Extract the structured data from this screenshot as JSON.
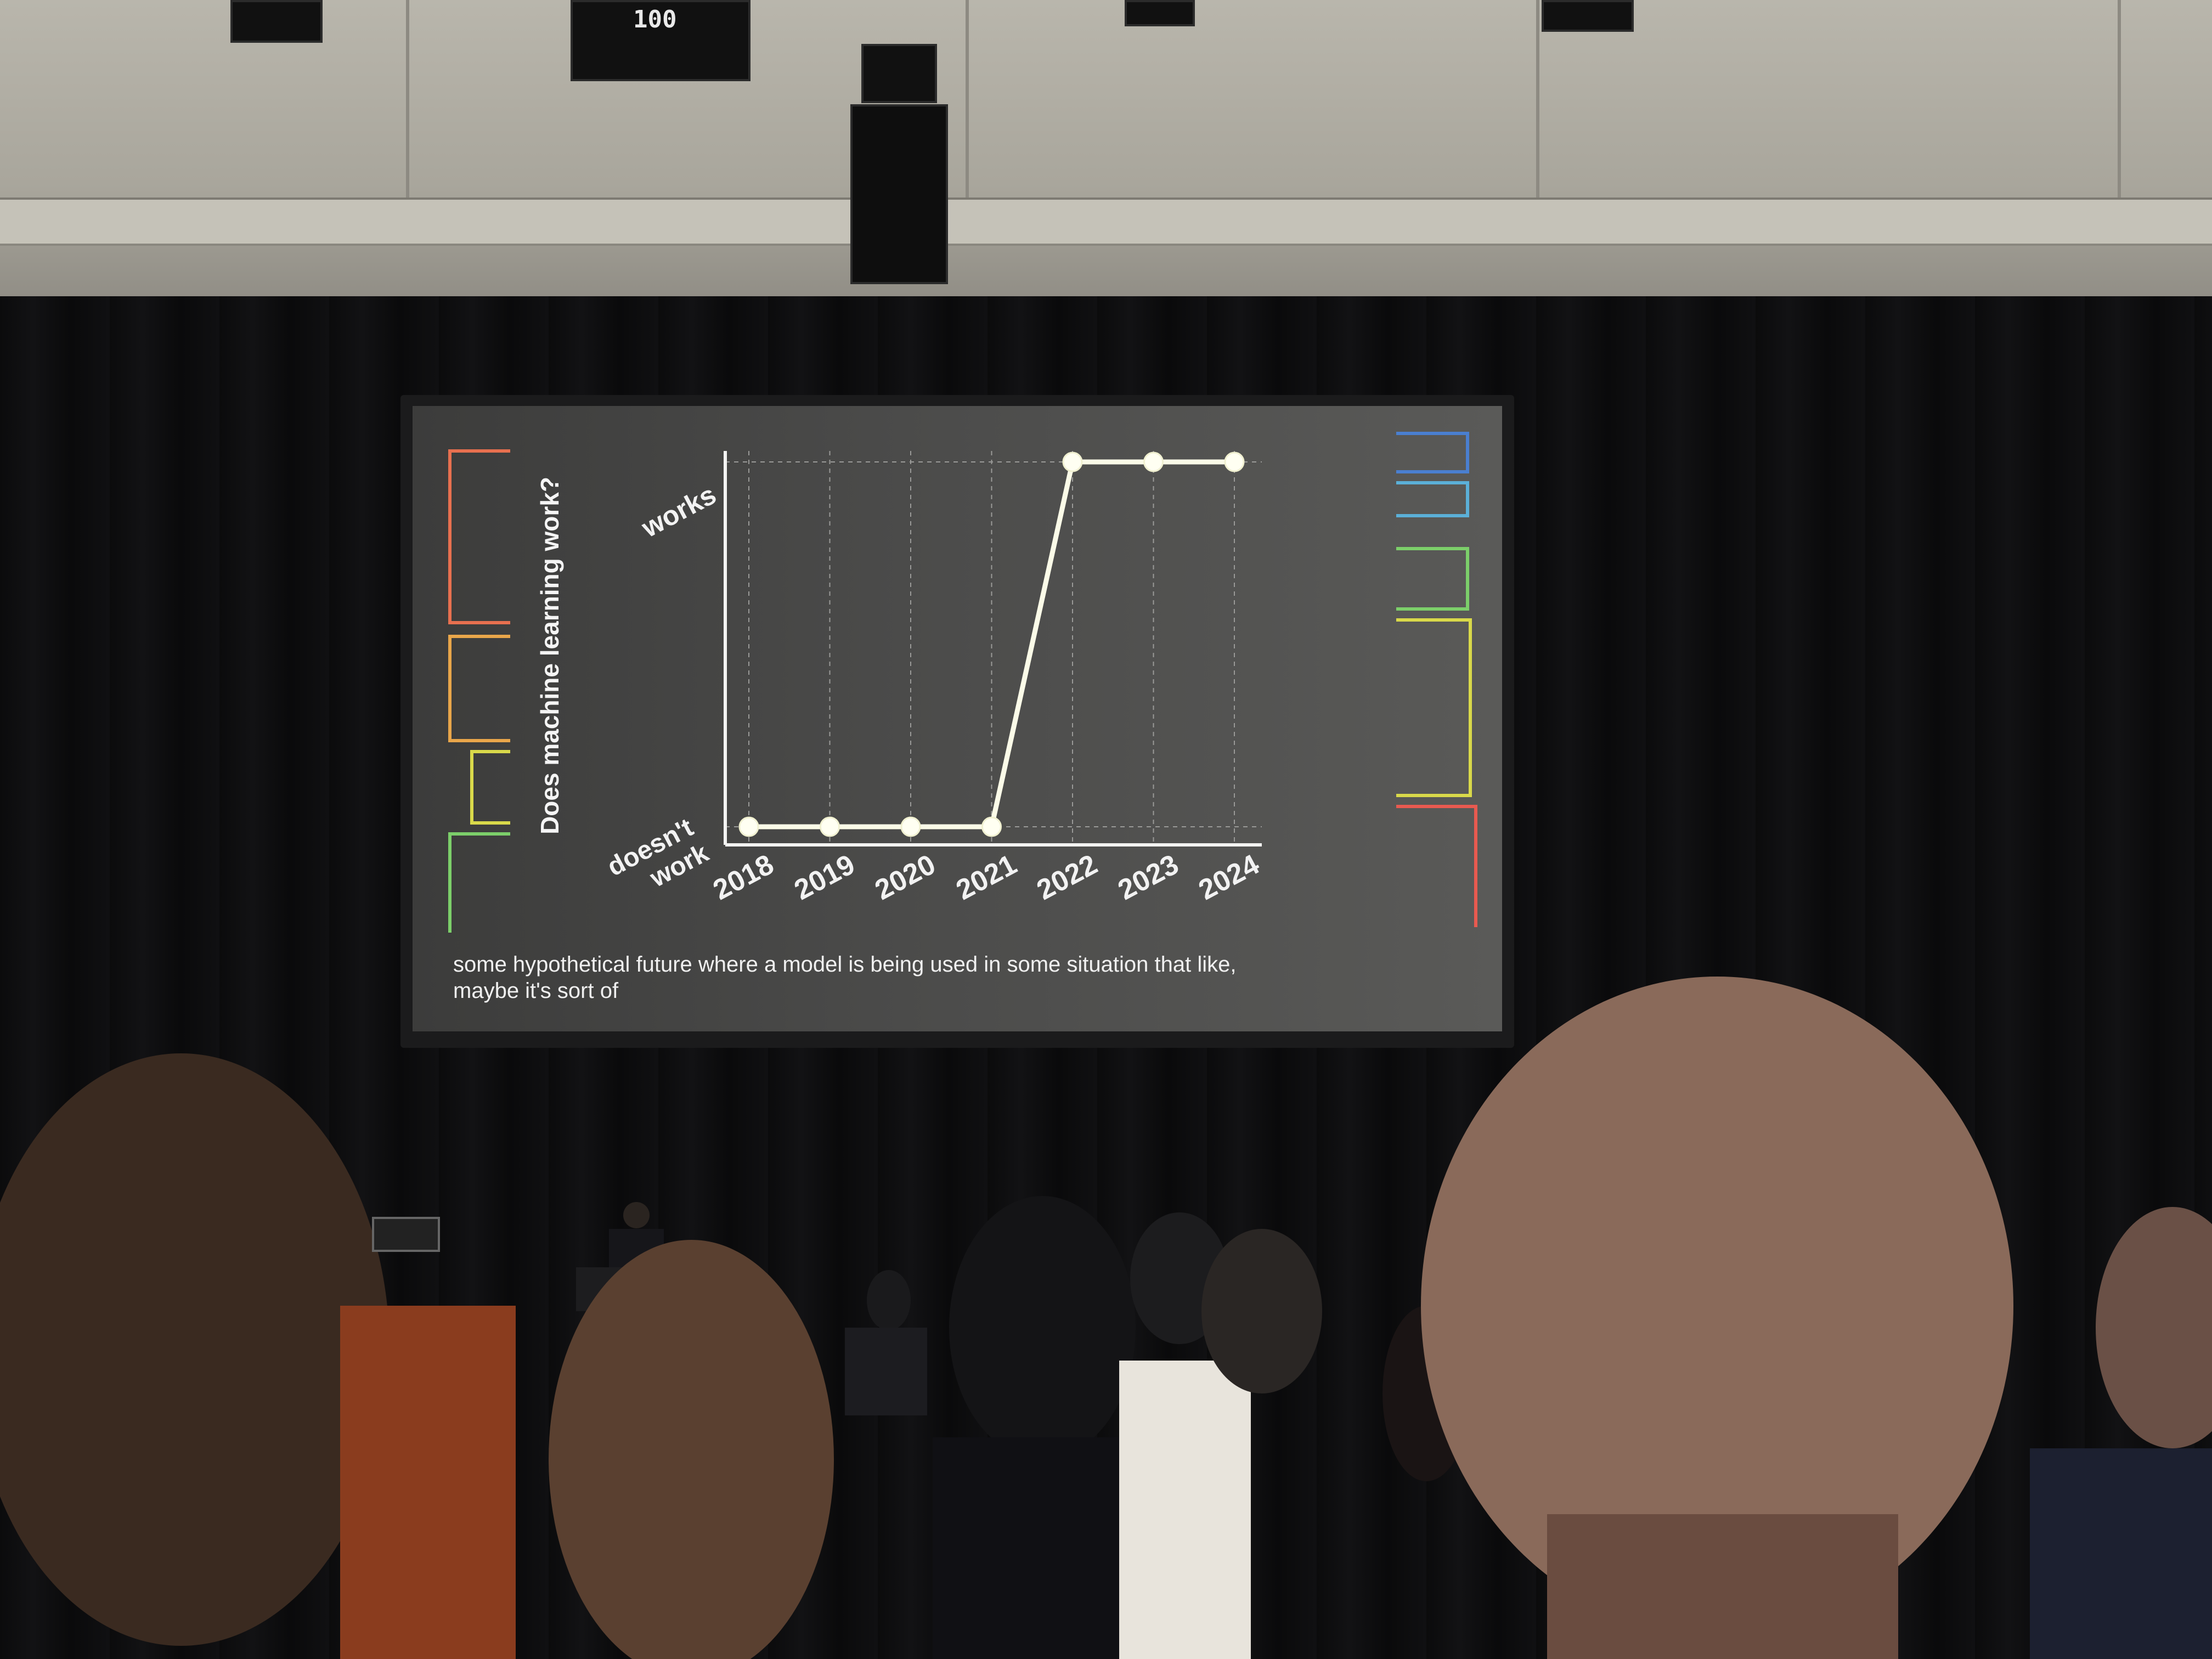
{
  "slide": {
    "chart_data": {
      "type": "line",
      "title": "",
      "ylabel": "Does machine learning work?",
      "xlabel": "",
      "x": [
        "2018",
        "2019",
        "2020",
        "2021",
        "2022",
        "2023",
        "2024"
      ],
      "y_categories": [
        "doesn't work",
        "works"
      ],
      "series": [
        {
          "values": [
            0,
            0,
            0,
            0,
            1,
            1,
            1
          ]
        }
      ],
      "ylim": [
        0,
        1
      ],
      "grid": true
    },
    "y_tick_works": "works",
    "y_tick_doesnt_line1": "doesn't",
    "y_tick_doesnt_line2": "work",
    "caption_line1": "some hypothetical future where a model is being used in some situation that like,",
    "caption_line2": "maybe it's sort of",
    "decor_colors": [
      "#e8704f",
      "#e9a64a",
      "#d9d94a",
      "#7ccf6a",
      "#5bb0d8",
      "#4a7fd0",
      "#e85a50"
    ]
  },
  "equipment": {
    "projector_readout": "100"
  }
}
